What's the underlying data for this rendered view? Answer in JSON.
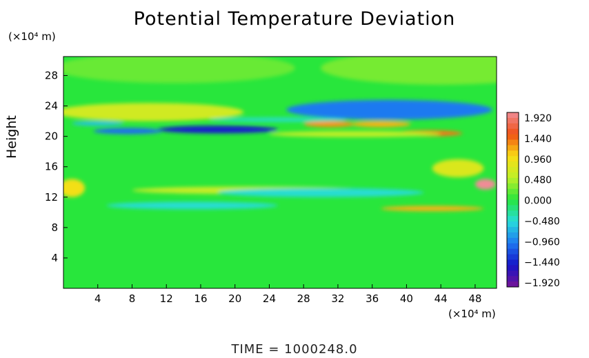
{
  "chart_data": {
    "type": "heatmap",
    "title": "Potential Temperature Deviation",
    "ylabel": "Height",
    "yunit": "(×10⁴ m)",
    "xunit": "(×10⁴ m)",
    "x_ticks": [
      4,
      8,
      12,
      16,
      20,
      24,
      28,
      32,
      36,
      40,
      44,
      48
    ],
    "y_ticks": [
      4,
      8,
      12,
      16,
      20,
      24,
      28
    ],
    "xlim": [
      0,
      50.5
    ],
    "ylim": [
      0,
      30.5
    ],
    "colorbar": {
      "labels": [
        "1.920",
        "1.440",
        "0.960",
        "0.480",
        "0.000",
        "−0.480",
        "−0.960",
        "−1.440",
        "−1.920"
      ],
      "range": [
        -1.92,
        1.92
      ]
    },
    "background_value": 0.0,
    "features": [
      {
        "x": 10,
        "y": 23.2,
        "value": 0.62
      },
      {
        "x": 18,
        "y": 20.9,
        "value": -1.4
      },
      {
        "x": 7.5,
        "y": 20.7,
        "value": -1.0
      },
      {
        "x": 38,
        "y": 23.5,
        "value": -0.95
      },
      {
        "x": 31,
        "y": 21.6,
        "value": 1.2
      },
      {
        "x": 37,
        "y": 21.6,
        "value": 1.1
      },
      {
        "x": 42.5,
        "y": 20.4,
        "value": 1.3
      },
      {
        "x": 49.2,
        "y": 13.7,
        "value": 1.92
      },
      {
        "x": 46,
        "y": 15.8,
        "value": 0.7
      },
      {
        "x": 22,
        "y": 12.9,
        "value": 0.55
      },
      {
        "x": 43,
        "y": 10.5,
        "value": 1.1
      },
      {
        "x": 1,
        "y": 13.2,
        "value": 0.9
      },
      {
        "x": 44,
        "y": 29,
        "value": 0.25
      },
      {
        "x": 13,
        "y": 29,
        "value": 0.2
      },
      {
        "x": 4,
        "y": 21.7,
        "value": -0.6
      },
      {
        "x": 30,
        "y": 12.6,
        "value": -0.45
      },
      {
        "x": 15,
        "y": 10.9,
        "value": -0.45
      },
      {
        "x": 34,
        "y": 20.3,
        "value": 0.5
      },
      {
        "x": 25,
        "y": 22.2,
        "value": -0.4
      }
    ]
  },
  "footer": {
    "time_label": "TIME  =  1000248.0"
  }
}
